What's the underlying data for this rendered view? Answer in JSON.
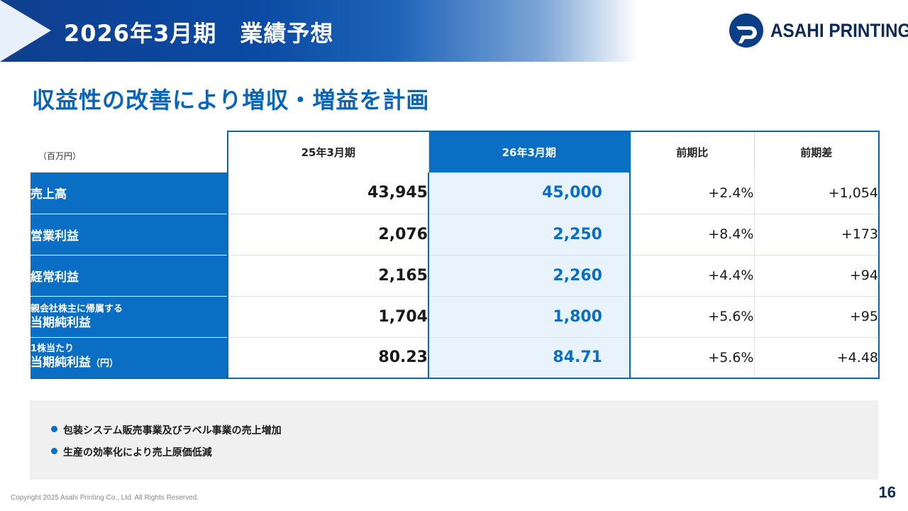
{
  "header": {
    "title": "2026年3月期　業績予想",
    "logo_text": "ASAHI PRINTING"
  },
  "subtitle": "収益性の改善により増収・増益を計画",
  "table": {
    "unit": "（百万円）",
    "columns": [
      "25年3月期",
      "26年3月期",
      "前期比",
      "前期差"
    ],
    "rows": [
      {
        "label_small": "",
        "label": "売上高",
        "label_unit": "",
        "prev": "43,945",
        "forecast": "45,000",
        "ratio": "+2.4%",
        "diff": "+1,054"
      },
      {
        "label_small": "",
        "label": "営業利益",
        "label_unit": "",
        "prev": "2,076",
        "forecast": "2,250",
        "ratio": "+8.4%",
        "diff": "+173"
      },
      {
        "label_small": "",
        "label": "経常利益",
        "label_unit": "",
        "prev": "2,165",
        "forecast": "2,260",
        "ratio": "+4.4%",
        "diff": "+94"
      },
      {
        "label_small": "親会社株主に帰属する",
        "label": "当期純利益",
        "label_unit": "",
        "prev": "1,704",
        "forecast": "1,800",
        "ratio": "+5.6%",
        "diff": "+95"
      },
      {
        "label_small": "1株当たり",
        "label": "当期純利益",
        "label_unit": "（円）",
        "prev": "80.23",
        "forecast": "84.71",
        "ratio": "+5.6%",
        "diff": "+4.48"
      }
    ]
  },
  "notes": [
    "包装システム販売事業及びラベル事業の売上増加",
    "生産の効率化により売上原価低減"
  ],
  "footer": {
    "copyright": "Copyright 2025 Asahi Printing Co., Ltd. All Rights Reserved.",
    "page": "16"
  },
  "colors": {
    "primary": "#0a6fc4",
    "navy": "#0b3e86",
    "highlight_bg": "#e8f3fd"
  }
}
